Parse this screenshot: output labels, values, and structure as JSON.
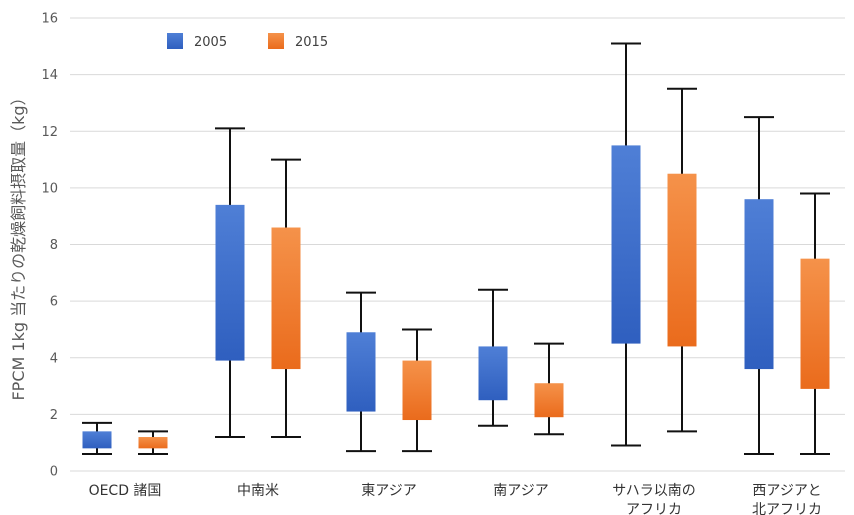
{
  "chart_data": {
    "type": "box",
    "title": "",
    "xlabel": "",
    "ylabel": "FPCM 1kg 当たりの乾燥飼料摂取量（kg）",
    "ylim": [
      0,
      16
    ],
    "yticks": [
      0,
      2,
      4,
      6,
      8,
      10,
      12,
      14,
      16
    ],
    "grid": true,
    "legend": "top-left",
    "categories": [
      [
        "OECD 諸国"
      ],
      [
        "中南米"
      ],
      [
        "東アジア"
      ],
      [
        "南アジア"
      ],
      [
        "サハラ以南の",
        "アフリカ"
      ],
      [
        "西アジアと",
        "北アフリカ"
      ]
    ],
    "series": [
      {
        "name": "2005",
        "color_top": "#4f7fd6",
        "color_bottom": "#2f5fbf",
        "boxes": [
          {
            "min": 0.6,
            "q1": 0.8,
            "q3": 1.4,
            "max": 1.7
          },
          {
            "min": 1.2,
            "q1": 3.9,
            "q3": 9.4,
            "max": 12.1
          },
          {
            "min": 0.7,
            "q1": 2.1,
            "q3": 4.9,
            "max": 6.3
          },
          {
            "min": 1.6,
            "q1": 2.5,
            "q3": 4.4,
            "max": 6.4
          },
          {
            "min": 0.9,
            "q1": 4.5,
            "q3": 11.5,
            "max": 15.1
          },
          {
            "min": 0.6,
            "q1": 3.6,
            "q3": 9.6,
            "max": 12.5
          }
        ]
      },
      {
        "name": "2015",
        "color_top": "#f5924a",
        "color_bottom": "#ea6b1c",
        "boxes": [
          {
            "min": 0.6,
            "q1": 0.8,
            "q3": 1.2,
            "max": 1.4
          },
          {
            "min": 1.2,
            "q1": 3.6,
            "q3": 8.6,
            "max": 11.0
          },
          {
            "min": 0.7,
            "q1": 1.8,
            "q3": 3.9,
            "max": 5.0
          },
          {
            "min": 1.3,
            "q1": 1.9,
            "q3": 3.1,
            "max": 4.5
          },
          {
            "min": 1.4,
            "q1": 4.4,
            "q3": 10.5,
            "max": 13.5
          },
          {
            "min": 0.6,
            "q1": 2.9,
            "q3": 7.5,
            "max": 9.8
          }
        ]
      }
    ]
  }
}
